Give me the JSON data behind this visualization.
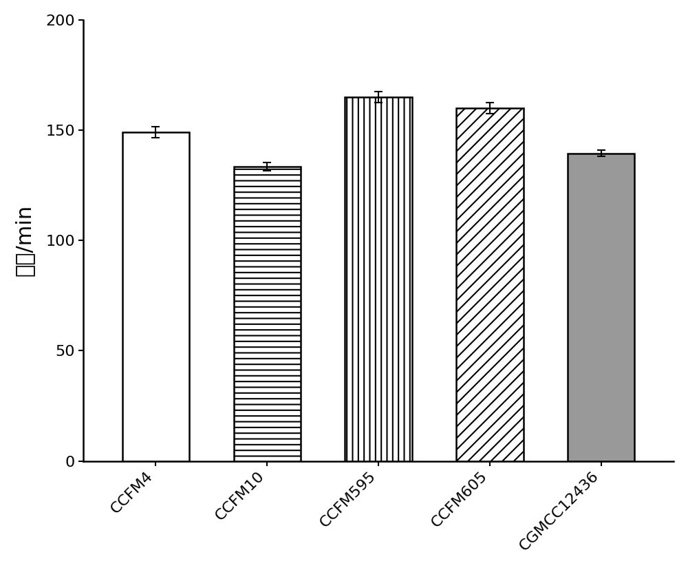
{
  "categories": [
    "CCFM4",
    "CCFM10",
    "CCFM595",
    "CCFM605",
    "CGMCC12436"
  ],
  "values": [
    149.0,
    133.5,
    165.0,
    160.0,
    139.5
  ],
  "errors": [
    2.5,
    2.0,
    2.5,
    2.5,
    1.5
  ],
  "ylabel": "代时/min",
  "ylim": [
    0,
    200
  ],
  "yticks": [
    0,
    50,
    100,
    150,
    200
  ],
  "bar_width": 0.6,
  "background_color": "#ffffff",
  "bar_edge_color": "#000000",
  "error_cap_size": 4,
  "hatch_patterns": [
    "",
    "--",
    "||",
    "//",
    ""
  ],
  "bar_face_colors": [
    "#ffffff",
    "#ffffff",
    "#ffffff",
    "#ffffff",
    "#999999"
  ]
}
